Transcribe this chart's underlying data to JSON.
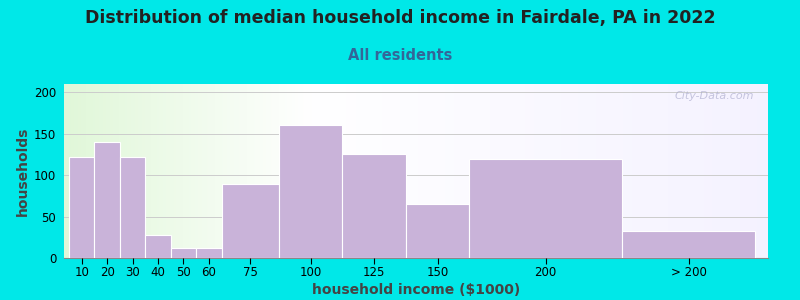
{
  "title": "Distribution of median household income in Fairdale, PA in 2022",
  "subtitle": "All residents",
  "xlabel": "household income ($1000)",
  "ylabel": "households",
  "bar_labels": [
    "10",
    "20",
    "30",
    "40",
    "50",
    "60",
    "75",
    "100",
    "125",
    "150",
    "200",
    "> 200"
  ],
  "bar_values": [
    122,
    140,
    122,
    28,
    12,
    12,
    89,
    161,
    125,
    65,
    119,
    33
  ],
  "bar_left_edges": [
    5,
    15,
    25,
    35,
    45,
    55,
    65,
    87.5,
    112.5,
    137.5,
    162.5,
    222.5
  ],
  "bar_widths": [
    10,
    10,
    10,
    10,
    10,
    10,
    22.5,
    25,
    25,
    25,
    60,
    52.5
  ],
  "bar_color": "#c9b3d9",
  "ylim": [
    0,
    210
  ],
  "yticks": [
    0,
    50,
    100,
    150,
    200
  ],
  "bg_outer": "#00e8e8",
  "grid_color": "#cccccc",
  "title_fontsize": 12.5,
  "subtitle_fontsize": 10.5,
  "subtitle_color": "#336699",
  "axis_label_fontsize": 10,
  "tick_fontsize": 8.5,
  "watermark_text": "City-Data.com",
  "xmin": 3,
  "xmax": 280
}
